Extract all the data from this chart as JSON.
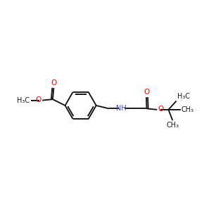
{
  "background_color": "#ffffff",
  "bond_color": "#1a1a1a",
  "oxygen_color": "#ff0000",
  "nitrogen_color": "#4444cc",
  "figsize": [
    3.0,
    3.0
  ],
  "dpi": 100,
  "xlim": [
    0,
    10
  ],
  "ylim": [
    2,
    8
  ],
  "lw": 1.4,
  "fs": 7.0
}
